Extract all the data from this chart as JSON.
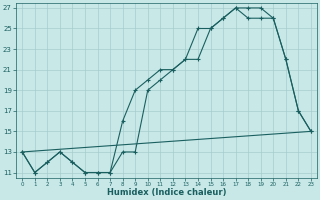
{
  "xlabel": "Humidex (Indice chaleur)",
  "background_color": "#c8e8e8",
  "grid_color": "#a8cccc",
  "line_color": "#1a5f5f",
  "xlim": [
    -0.5,
    23.5
  ],
  "ylim": [
    10.5,
    27.5
  ],
  "xtick_vals": [
    0,
    1,
    2,
    3,
    4,
    5,
    6,
    7,
    8,
    9,
    10,
    11,
    12,
    13,
    14,
    15,
    16,
    17,
    18,
    19,
    20,
    21,
    22,
    23
  ],
  "ytick_vals": [
    11,
    13,
    15,
    17,
    19,
    21,
    23,
    25,
    27
  ],
  "line1_x": [
    0,
    1,
    2,
    3,
    4,
    5,
    6,
    7,
    8,
    9,
    10,
    11,
    12,
    13,
    14,
    15,
    16,
    17,
    18,
    19,
    20,
    21,
    22,
    23
  ],
  "line1_y": [
    13,
    11,
    12,
    13,
    12,
    11,
    11,
    11,
    16,
    19,
    20,
    21,
    21,
    22,
    25,
    25,
    26,
    27,
    27,
    27,
    26,
    22,
    17,
    15
  ],
  "line2_x": [
    0,
    1,
    2,
    3,
    4,
    5,
    6,
    7,
    8,
    9,
    10,
    11,
    12,
    13,
    14,
    15,
    16,
    17,
    18,
    19,
    20,
    21,
    22,
    23
  ],
  "line2_y": [
    13,
    11,
    12,
    13,
    12,
    11,
    11,
    11,
    13,
    13,
    19,
    20,
    21,
    22,
    22,
    25,
    26,
    27,
    26,
    26,
    26,
    22,
    17,
    15
  ],
  "line3_x": [
    0,
    23
  ],
  "line3_y": [
    13,
    15
  ],
  "marker": "+",
  "ms": 3,
  "lw": 0.8
}
